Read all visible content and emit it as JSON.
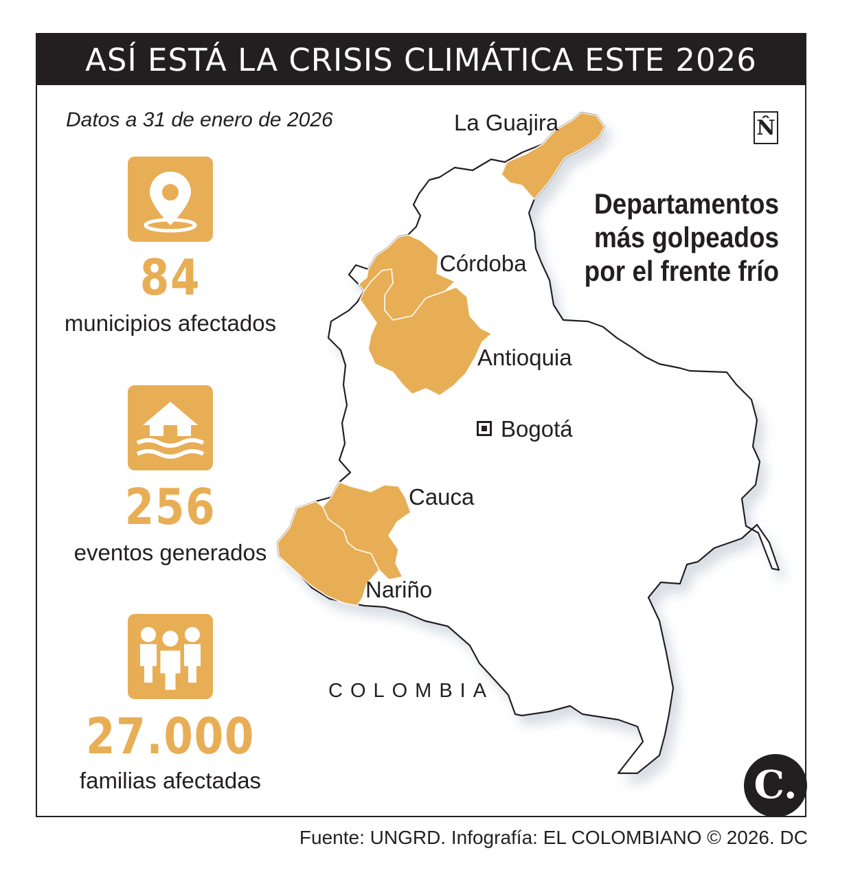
{
  "title": "ASÍ ESTÁ LA CRISIS CLIMÁTICA ESTE 2026",
  "date_note": "Datos a 31 de enero de 2026",
  "stats": [
    {
      "icon": "location-pin-icon",
      "value": "84",
      "label": "municipios afectados"
    },
    {
      "icon": "flooded-house-icon",
      "value": "256",
      "label": "eventos generados"
    },
    {
      "icon": "people-group-icon",
      "value": "27.000",
      "label": "familias afectadas"
    }
  ],
  "map": {
    "headline": [
      "Departamentos",
      "más golpeados",
      "por el frente frío"
    ],
    "country": "COLOMBIA",
    "capital": "Bogotá",
    "departments": [
      "La Guajira",
      "Córdoba",
      "Antioquia",
      "Cauca",
      "Nariño"
    ],
    "north_symbol": "N̂",
    "highlight_color": "#e8ae55",
    "outline_color": "#231f20"
  },
  "logo": "C.",
  "source": "Fuente: UNGRD. Infografía: EL COLOMBIANO © 2026. DC"
}
